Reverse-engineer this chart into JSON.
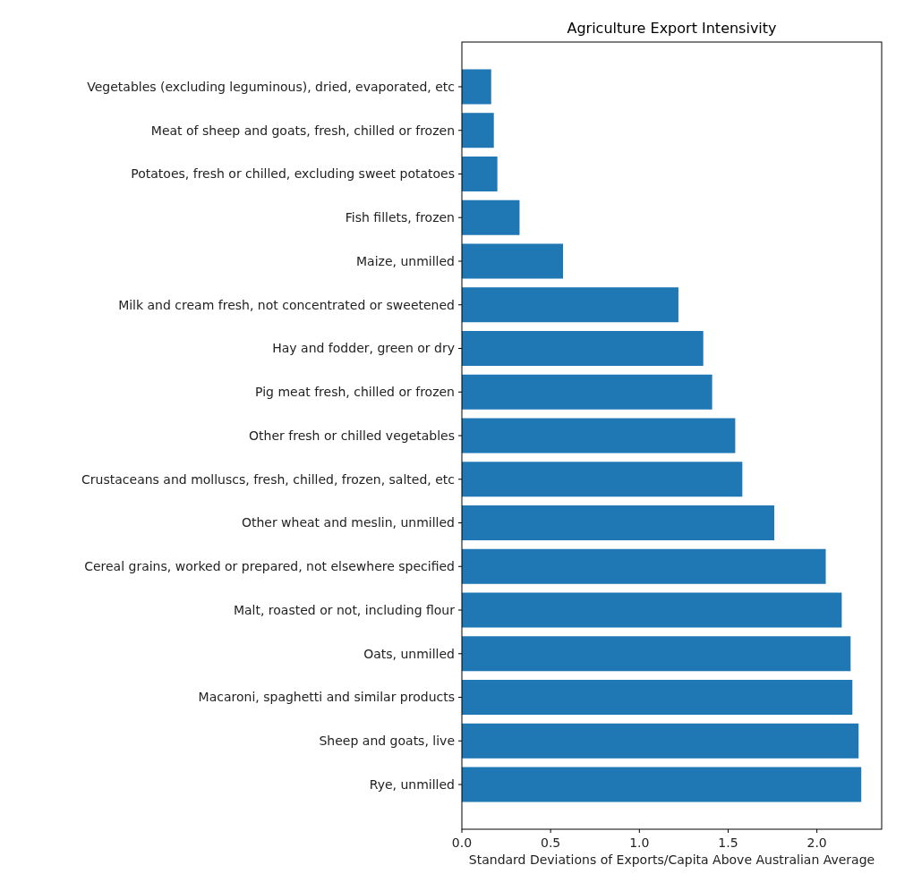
{
  "chart_data": {
    "type": "bar",
    "orientation": "horizontal",
    "title": "Agriculture Export Intensivity",
    "xlabel": "Standard Deviations of Exports/Capita Above Australian Average",
    "categories": [
      "Vegetables (excluding leguminous), dried, evaporated, etc",
      "Meat of sheep and goats, fresh, chilled or frozen",
      "Potatoes, fresh or chilled, excluding sweet potatoes",
      "Fish fillets, frozen",
      "Maize, unmilled",
      "Milk and cream fresh, not concentrated or sweetened",
      "Hay and fodder, green or dry",
      "Pig meat fresh, chilled or frozen",
      "Other fresh or chilled vegetables",
      "Crustaceans and molluscs, fresh, chilled, frozen, salted, etc",
      "Other wheat and meslin, unmilled",
      "Cereal grains, worked or prepared, not elsewhere specified",
      "Malt, roasted or not, including flour",
      "Oats, unmilled",
      "Macaroni, spaghetti and similar products",
      "Sheep and goats, live",
      "Rye, unmilled"
    ],
    "values": [
      0.165,
      0.18,
      0.2,
      0.325,
      0.57,
      1.22,
      1.36,
      1.41,
      1.54,
      1.58,
      1.76,
      2.05,
      2.14,
      2.19,
      2.2,
      2.235,
      2.25
    ],
    "color": "#1f77b4",
    "xlim": [
      0,
      2.365
    ],
    "xticks": [
      {
        "value": 0,
        "label": "0.0"
      },
      {
        "value": 0.5,
        "label": "0.5"
      },
      {
        "value": 1,
        "label": "1.0"
      },
      {
        "value": 1.5,
        "label": "1.5"
      },
      {
        "value": 2,
        "label": "2.0"
      }
    ],
    "grid": false
  }
}
